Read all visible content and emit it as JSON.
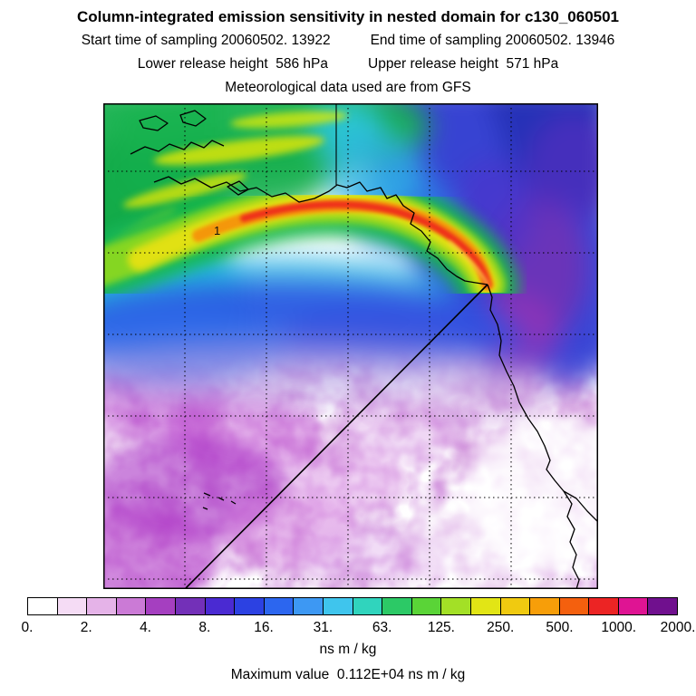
{
  "header": {
    "title": "Column-integrated emission sensitivity in nested domain for c130_060501",
    "sampling_start": "Start time of sampling 20060502. 13922",
    "sampling_end": "End time of sampling 20060502. 13946",
    "lower_release": "Lower release height  586 hPa",
    "upper_release": "Upper release height  571 hPa",
    "met_data": "Meteorological data used are from GFS"
  },
  "map": {
    "annotation": "1"
  },
  "colorbar": {
    "ticks": [
      "0.",
      "2.",
      "4.",
      "8.",
      "16.",
      "31.",
      "63.",
      "125.",
      "250.",
      "500.",
      "1000.",
      "2000."
    ],
    "segment_colors": [
      "#ffffff",
      "#f5dcf5",
      "#e5b3e8",
      "#cb7ad6",
      "#a53fc0",
      "#7330b8",
      "#4a2ad2",
      "#2c41e2",
      "#2c66ef",
      "#3d98f3",
      "#3fc5ed",
      "#30d4bd",
      "#2cc966",
      "#5ad437",
      "#a3e026",
      "#e2e515",
      "#f0ca10",
      "#f79e09",
      "#f4600e",
      "#ec2424",
      "#df1493",
      "#70108e"
    ],
    "units": "ns m / kg"
  },
  "footer": {
    "max_value": "Maximum value  0.112E+04 ns m / kg"
  },
  "chart_data": {
    "type": "heatmap",
    "title": "Column-integrated emission sensitivity in nested domain for c130_060501",
    "subtitles": [
      "Start time of sampling 20060502. 13922",
      "End time of sampling 20060502. 13946",
      "Lower release height  586 hPa",
      "Upper release height  571 hPa",
      "Meteorological data used are from GFS"
    ],
    "units": "ns m / kg",
    "levels": [
      0,
      2,
      4,
      8,
      16,
      31,
      63,
      125,
      250,
      500,
      1000,
      2000
    ],
    "level_colors": [
      "#ffffff",
      "#f5dcf5",
      "#e5b3e8",
      "#cb7ad6",
      "#a53fc0",
      "#7330b8",
      "#4a2ad2",
      "#2c41e2",
      "#2c66ef",
      "#3d98f3",
      "#3fc5ed",
      "#30d4bd",
      "#2cc966",
      "#5ad437",
      "#a3e026",
      "#e2e515",
      "#f0ca10",
      "#f79e09",
      "#f4600e",
      "#ec2424",
      "#df1493",
      "#70108e"
    ],
    "colorbar_position": "bottom-horizontal",
    "max_value_text": "0.112E+04",
    "max_value": 1120,
    "annotations": [
      "1"
    ],
    "overlays": [
      "coastlines",
      "dashed lat-lon grid",
      "straight flight-track line from coast to lower-left"
    ],
    "grid": true
  }
}
